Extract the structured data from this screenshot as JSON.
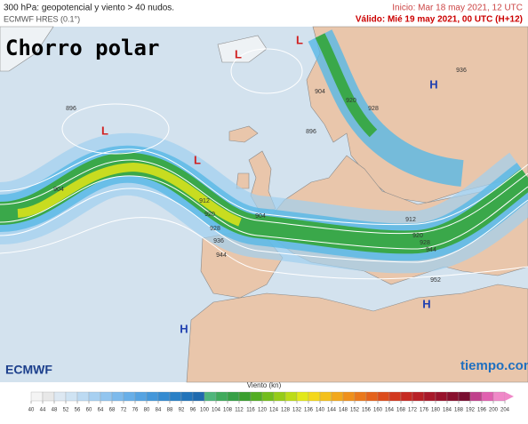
{
  "header": {
    "title": "300 hPa: geopotencial y viento > 40 nudos.",
    "model": "ECMWF HRES (0.1°)",
    "init": "Inicio: Mar 18 may 2021, 12 UTC",
    "valid": "Válido: Mié 19 may 2021, 00 UTC (H+12)"
  },
  "overlay": "Chorro polar",
  "centers": [
    "L",
    "L",
    "L",
    "L",
    "H",
    "H",
    "H"
  ],
  "contours": [
    "896",
    "896",
    "904",
    "904",
    "904",
    "912",
    "912",
    "920",
    "920",
    "920",
    "928",
    "928",
    "928",
    "936",
    "936",
    "944",
    "944",
    "952"
  ],
  "logos": {
    "left": "ECMWF",
    "right": "tiempo.com"
  },
  "legend": {
    "title": "Viento (kn)",
    "ticks": [
      40,
      44,
      48,
      52,
      56,
      60,
      64,
      68,
      72,
      76,
      80,
      84,
      88,
      92,
      96,
      100,
      104,
      108,
      112,
      116,
      120,
      124,
      128,
      132,
      136,
      140,
      144,
      148,
      152,
      156,
      160,
      164,
      168,
      172,
      176,
      180,
      184,
      188,
      192,
      196,
      200,
      204
    ],
    "colors": [
      "#f4f4f4",
      "#e8e8e8",
      "#dde8f2",
      "#cfe3f3",
      "#bcdaf2",
      "#a7d0f1",
      "#92c5ef",
      "#7dbaec",
      "#68afe8",
      "#55a3e2",
      "#4497da",
      "#358bd1",
      "#2a80c6",
      "#2274ba",
      "#1f6aae",
      "#4fb67c",
      "#3faa5c",
      "#36a046",
      "#3a9f2e",
      "#52ad22",
      "#72bd1c",
      "#96cc18",
      "#bcdc18",
      "#e2e81a",
      "#f4d81c",
      "#f4c01c",
      "#f2a81c",
      "#ef901c",
      "#ea781c",
      "#e4621c",
      "#dc4c1c",
      "#d2381e",
      "#c62a22",
      "#b82026",
      "#a8182a",
      "#98122c",
      "#88102e",
      "#780e30",
      "#c0408c",
      "#e060b0",
      "#f088c8"
    ]
  }
}
